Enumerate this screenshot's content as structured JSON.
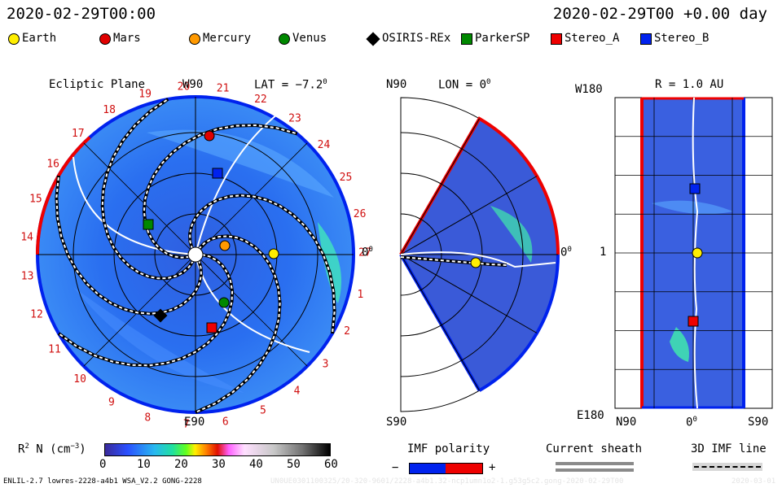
{
  "header": {
    "left_datetime": "2020-02-29T00:00",
    "right_datetime": "2020-02-29T00 +0.00 day"
  },
  "legend": [
    {
      "name": "Earth",
      "color": "#ffee00",
      "shape": "circle"
    },
    {
      "name": "Mars",
      "color": "#e00000",
      "shape": "circle"
    },
    {
      "name": "Mercury",
      "color": "#ff9900",
      "shape": "circle"
    },
    {
      "name": "Venus",
      "color": "#008800",
      "shape": "circle"
    },
    {
      "name": "OSIRIS-REx",
      "color": "#000000",
      "shape": "diamond"
    },
    {
      "name": "ParkerSP",
      "color": "#008800",
      "shape": "square"
    },
    {
      "name": "Stereo_A",
      "color": "#ee0000",
      "shape": "square"
    },
    {
      "name": "Stereo_B",
      "color": "#0022ee",
      "shape": "square"
    }
  ],
  "panels": {
    "ecliptic": {
      "title": "Ecliptic Plane",
      "top_label": "W90",
      "lat_label": "LAT = −7.2",
      "lat_sup": "0",
      "right_label": "0",
      "right_sup": "0",
      "bottom_label": "E90",
      "rotation_numbers": [
        "1",
        "2",
        "3",
        "4",
        "5",
        "6",
        "7",
        "8",
        "9",
        "10",
        "11",
        "12",
        "13",
        "14",
        "15",
        "16",
        "17",
        "18",
        "19",
        "20",
        "21",
        "22",
        "23",
        "24",
        "25",
        "26",
        "27"
      ]
    },
    "meridional": {
      "top_left": "N90",
      "lon_label": "LON = 0",
      "lon_sup": "0",
      "right_label": "0",
      "right_sup": "0",
      "bottom_left": "S90"
    },
    "radial": {
      "top_left": "W180",
      "title": "R = 1.0 AU",
      "left_mid": "1",
      "bottom_left": "E180",
      "bottom_n": "N90",
      "bottom_zero": "0",
      "bottom_zero_sup": "0",
      "bottom_s": "S90"
    }
  },
  "colorbar": {
    "label": "R",
    "label_sup": "2",
    "label_rest": " N (cm",
    "label_sup2": "−3",
    "label_close": ")",
    "ticks": [
      "0",
      "10",
      "20",
      "30",
      "40",
      "50",
      "60"
    ]
  },
  "imf_polarity": {
    "title": "IMF polarity",
    "minus": "−",
    "plus": "+",
    "neg_color": "#0022ee",
    "pos_color": "#ee0000"
  },
  "current_sheath": {
    "title": "Current sheath"
  },
  "imf_line": {
    "title": "3D IMF line"
  },
  "footer": {
    "left": "ENLIL-2.7 lowres-2228-a4b1 WSA_V2.2 GONG-2228",
    "middle": "UN0UE0301100325/20-320-9601/2228-a4b1.32-ncp1umn1o2-1.g53g5c2.gong-2020-02-29T00",
    "right": "2020-03-01"
  },
  "chart_data": [
    {
      "type": "heatmap",
      "title": "Ecliptic Plane",
      "quantity": "R^2 N (cm^-3)",
      "colorbar_range": [
        0,
        60
      ],
      "colorbar_ticks": [
        0,
        10,
        20,
        30,
        40,
        50,
        60
      ],
      "objects_shown": [
        "Earth",
        "Mars",
        "Mercury",
        "Venus",
        "OSIRIS-REx",
        "ParkerSP",
        "Stereo_A",
        "Stereo_B"
      ]
    },
    {
      "type": "heatmap",
      "title": "LON = 0°",
      "axis_labels": [
        "N90",
        "0°",
        "S90"
      ]
    },
    {
      "type": "heatmap",
      "title": "R = 1.0 AU",
      "y_labels": [
        "W180",
        "1",
        "E180"
      ],
      "x_labels": [
        "N90",
        "0°",
        "S90"
      ]
    }
  ]
}
